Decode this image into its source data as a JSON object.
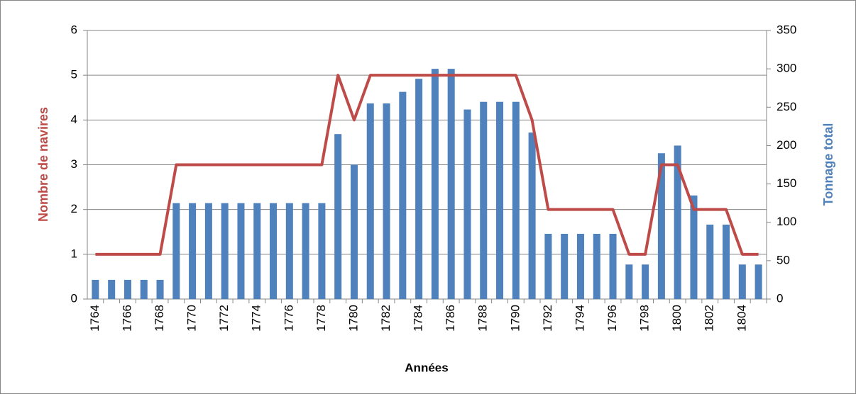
{
  "chart_data": {
    "type": "bar-line",
    "x_label": "Années",
    "y_label": "Nombre de navires",
    "y2_label": "Tonnage total",
    "categories": [
      "1764",
      null,
      "1766",
      null,
      "1768",
      null,
      "1770",
      null,
      "1772",
      null,
      "1774",
      null,
      "1776",
      null,
      "1778",
      null,
      "1780",
      null,
      "1782",
      null,
      "1784",
      null,
      "1786",
      null,
      "1788",
      null,
      "1790",
      null,
      "1792",
      null,
      "1794",
      null,
      "1796",
      null,
      "1798",
      null,
      "1800",
      null,
      "1802",
      null,
      "1804",
      null
    ],
    "series": [
      {
        "name": "Nombre de navires",
        "type": "line",
        "color": "#be4b48",
        "values": [
          1,
          1,
          1,
          1,
          1,
          3,
          3,
          3,
          3,
          3,
          3,
          3,
          3,
          3,
          3,
          5,
          4,
          5,
          5,
          5,
          5,
          5,
          5,
          5,
          5,
          5,
          5,
          4,
          2,
          2,
          2,
          2,
          2,
          1,
          1,
          3,
          3,
          2,
          2,
          2,
          1,
          1
        ]
      },
      {
        "name": "Tonnage total",
        "type": "bar",
        "axis": "y2",
        "color": "#4f81bd",
        "values": [
          25,
          25,
          25,
          25,
          25,
          125,
          125,
          125,
          125,
          125,
          125,
          125,
          125,
          125,
          125,
          215,
          175,
          255,
          255,
          270,
          287,
          300,
          300,
          247,
          257,
          257,
          257,
          217,
          85,
          85,
          85,
          85,
          85,
          45,
          45,
          190,
          200,
          135,
          97,
          97,
          45,
          45
        ]
      }
    ],
    "ylim": [
      0,
      6
    ],
    "yticks": [
      0,
      1,
      2,
      3,
      4,
      5,
      6
    ],
    "y2lim": [
      0,
      350
    ],
    "y2ticks": [
      0,
      50,
      100,
      150,
      200,
      250,
      300,
      350
    ],
    "grid": true
  }
}
